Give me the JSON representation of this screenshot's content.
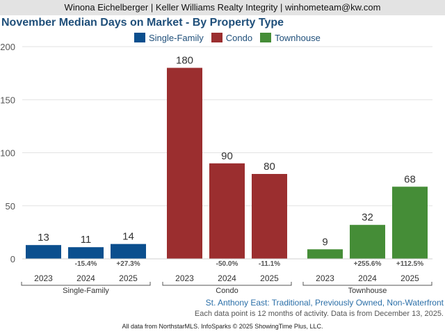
{
  "header": {
    "agent_line": "Winona Eichelberger | Keller Williams Realty Integrity | winhometeam@kw.com"
  },
  "chart_data": {
    "type": "bar",
    "title": "November Median Days on Market - By Property Type",
    "ylim": [
      0,
      200
    ],
    "yticks": [
      0,
      50,
      100,
      150,
      200
    ],
    "grid": true,
    "legend_position": "top",
    "years": [
      "2023",
      "2024",
      "2025"
    ],
    "series": [
      {
        "name": "Single-Family",
        "color": "#0b4f8e",
        "values": [
          13,
          11,
          14
        ],
        "changes": [
          "",
          "-15.4%",
          "+27.3%"
        ]
      },
      {
        "name": "Condo",
        "color": "#9b2e2f",
        "values": [
          180,
          90,
          80
        ],
        "changes": [
          "",
          "-50.0%",
          "-11.1%"
        ]
      },
      {
        "name": "Townhouse",
        "color": "#458d37",
        "values": [
          9,
          32,
          68
        ],
        "changes": [
          "",
          "+255.6%",
          "+112.5%"
        ]
      }
    ]
  },
  "subtitle": "St. Anthony East: Traditional, Previously Owned, Non-Waterfront",
  "note": "Each data point is 12 months of activity. Data is from December 13, 2025.",
  "footer": "All data from NorthstarMLS. InfoSparks © 2025 ShowingTime Plus, LLC."
}
